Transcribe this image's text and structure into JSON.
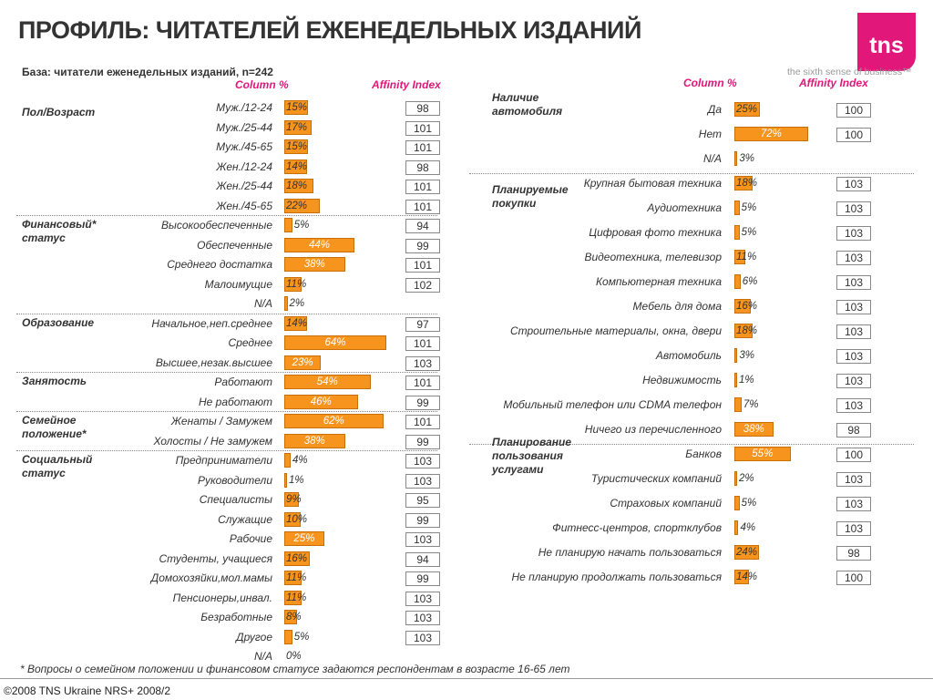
{
  "header": {
    "title": "ПРОФИЛЬ: ЧИТАТЕЛЕЙ ЕЖЕНЕДЕЛЬНЫХ ИЗДАНИЙ",
    "logo": "tns",
    "tagline": "the sixth sense of business™",
    "base": "База: читатели еженедельных изданий, n=242"
  },
  "colors": {
    "bar": "#f7941d",
    "accent": "#e2177a"
  },
  "chart_data": [
    {
      "type": "bar",
      "column_header": "Column %",
      "index_header": "Affinity Index",
      "groups": [
        {
          "name": "Пол/Возраст",
          "rows": [
            {
              "label": "Муж./12-24",
              "value": 15,
              "display": "15%",
              "index": "98"
            },
            {
              "label": "Муж./25-44",
              "value": 17,
              "display": "17%",
              "index": "101"
            },
            {
              "label": "Муж./45-65",
              "value": 15,
              "display": "15%",
              "index": "101"
            },
            {
              "label": "Жен./12-24",
              "value": 14,
              "display": "14%",
              "index": "98"
            },
            {
              "label": "Жен./25-44",
              "value": 18,
              "display": "18%",
              "index": "101"
            },
            {
              "label": "Жен./45-65",
              "value": 22,
              "display": "22%",
              "index": "101"
            }
          ]
        },
        {
          "name": "Финансовый* статус",
          "rows": [
            {
              "label": "Высокообеспеченные",
              "value": 5,
              "display": "5%",
              "index": "94"
            },
            {
              "label": "Обеспеченные",
              "value": 44,
              "display": "44%",
              "index": "99"
            },
            {
              "label": "Среднего достатка",
              "value": 38,
              "display": "38%",
              "index": "101"
            },
            {
              "label": "Малоимущие",
              "value": 11,
              "display": "11%",
              "index": "102"
            },
            {
              "label": "N/A",
              "value": 2,
              "display": "2%",
              "index": ""
            }
          ]
        },
        {
          "name": "Образование",
          "rows": [
            {
              "label": "Начальное,неп.среднее",
              "value": 14,
              "display": "14%",
              "index": "97"
            },
            {
              "label": "Среднее",
              "value": 64,
              "display": "64%",
              "index": "101"
            },
            {
              "label": "Высшее,незак.высшее",
              "value": 23,
              "display": "23%",
              "index": "103"
            }
          ]
        },
        {
          "name": "Занятость",
          "rows": [
            {
              "label": "Работают",
              "value": 54,
              "display": "54%",
              "index": "101"
            },
            {
              "label": "Не работают",
              "value": 46,
              "display": "46%",
              "index": "99"
            }
          ]
        },
        {
          "name": "Семейное положение*",
          "rows": [
            {
              "label": "Женаты / Замужем",
              "value": 62,
              "display": "62%",
              "index": "101"
            },
            {
              "label": "Холосты / Не замужем",
              "value": 38,
              "display": "38%",
              "index": "99"
            }
          ]
        },
        {
          "name": "Социальный статус",
          "rows": [
            {
              "label": "Предприниматели",
              "value": 4,
              "display": "4%",
              "index": "103"
            },
            {
              "label": "Руководители",
              "value": 1,
              "display": "1%",
              "index": "103"
            },
            {
              "label": "Специалисты",
              "value": 9,
              "display": "9%",
              "index": "95"
            },
            {
              "label": "Служащие",
              "value": 10,
              "display": "10%",
              "index": "99"
            },
            {
              "label": "Рабочие",
              "value": 25,
              "display": "25%",
              "index": "103"
            },
            {
              "label": "Студенты, учащиеся",
              "value": 16,
              "display": "16%",
              "index": "94"
            },
            {
              "label": "Домохозяйки,мол.мамы",
              "value": 11,
              "display": "11%",
              "index": "99"
            },
            {
              "label": "Пенсионеры,инвал.",
              "value": 11,
              "display": "11%",
              "index": "103"
            },
            {
              "label": "Безработные",
              "value": 8,
              "display": "8%",
              "index": "103"
            },
            {
              "label": "Другое",
              "value": 5,
              "display": "5%",
              "index": "103"
            },
            {
              "label": "N/A",
              "value": 0,
              "display": "0%",
              "index": ""
            }
          ]
        }
      ]
    },
    {
      "type": "bar",
      "column_header": "Column %",
      "index_header": "Affinity Index",
      "groups": [
        {
          "name": "Наличие автомобиля",
          "rows": [
            {
              "label": "Да",
              "value": 25,
              "display": "25%",
              "index": "100"
            },
            {
              "label": "Нет",
              "value": 72,
              "display": "72%",
              "index": "100"
            },
            {
              "label": "N/A",
              "value": 3,
              "display": "3%",
              "index": ""
            }
          ]
        },
        {
          "name": "Планируемые покупки",
          "rows": [
            {
              "label": "Крупная бытовая техника",
              "value": 18,
              "display": "18%",
              "index": "103"
            },
            {
              "label": "Аудиотехника",
              "value": 5,
              "display": "5%",
              "index": "103"
            },
            {
              "label": "Цифровая фото техника",
              "value": 5,
              "display": "5%",
              "index": "103"
            },
            {
              "label": "Видеотехника, телевизор",
              "value": 11,
              "display": "11%",
              "index": "103"
            },
            {
              "label": "Компьютерная техника",
              "value": 6,
              "display": "6%",
              "index": "103"
            },
            {
              "label": "Мебель для дома",
              "value": 16,
              "display": "16%",
              "index": "103"
            },
            {
              "label": "Строительные материалы, окна, двери",
              "value": 18,
              "display": "18%",
              "index": "103"
            },
            {
              "label": "Автомобиль",
              "value": 3,
              "display": "3%",
              "index": "103"
            },
            {
              "label": "Недвижимость",
              "value": 1,
              "display": "1%",
              "index": "103"
            },
            {
              "label": "Мобильный телефон или CDMA телефон",
              "value": 7,
              "display": "7%",
              "index": "103"
            },
            {
              "label": "Ничего из перечисленного",
              "value": 38,
              "display": "38%",
              "index": "98"
            }
          ]
        },
        {
          "name": "Планирование пользования услугами",
          "rows": [
            {
              "label": "Банков",
              "value": 55,
              "display": "55%",
              "index": "100"
            },
            {
              "label": "Туристических компаний",
              "value": 2,
              "display": "2%",
              "index": "103"
            },
            {
              "label": "Страховых компаний",
              "value": 5,
              "display": "5%",
              "index": "103"
            },
            {
              "label": "Фитнесс-центров, спортклубов",
              "value": 4,
              "display": "4%",
              "index": "103"
            },
            {
              "label": "Не планирую начать пользоваться",
              "value": 24,
              "display": "24%",
              "index": "98"
            },
            {
              "label": "Не планирую продолжать пользоваться",
              "value": 14,
              "display": "14%",
              "index": "100"
            }
          ]
        }
      ]
    }
  ],
  "footer": {
    "footnote": "* Вопросы о семейном положении и финансовом статусе задаются респондентам в возрасте 16-65 лет",
    "copyright": "©2008 TNS Ukraine  NRS+ 2008/2"
  }
}
